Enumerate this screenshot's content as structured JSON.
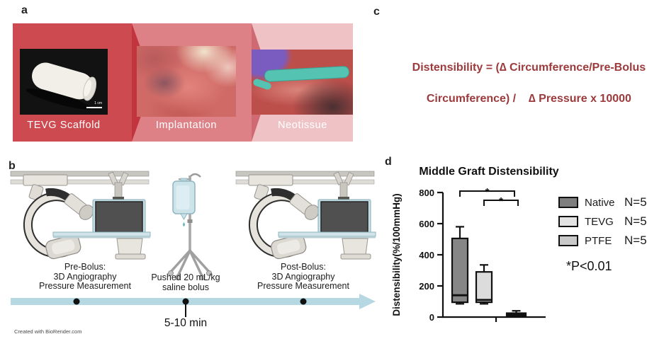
{
  "panels": {
    "a": {
      "label": "a",
      "steps": [
        {
          "title": "TEVG Scaffold"
        },
        {
          "title": "Implantation"
        },
        {
          "title": "Neotissue"
        }
      ],
      "scale_bar": "1 cm",
      "colors": {
        "step1": "#ce4a51",
        "step1_tip": "#c2353e",
        "step2": "#dd8187",
        "step2_tip": "#d06a72",
        "step3": "#efc3c6"
      }
    },
    "b": {
      "label": "b",
      "pre_bolus_lines": [
        "Pre-Bolus:",
        "3D Angiography",
        "Pressure Measurement"
      ],
      "bolus_lines": [
        "Pushed 20 mL/kg",
        "saline bolus"
      ],
      "post_bolus_lines": [
        "Post-Bolus:",
        "3D Angiography",
        "Pressure Measurement"
      ],
      "duration": "5-10 min",
      "credit": "Created with BioRender.com"
    },
    "c": {
      "label": "c",
      "formula_line1": "Distensibility = (∆ Circumference/Pre-Bolus",
      "formula_line2": "Circumference) /    ∆ Pressure x 10000",
      "color": "#9c3a3c"
    },
    "d": {
      "label": "d",
      "note": "*P<0.01"
    }
  },
  "chart_data": {
    "type": "box",
    "title": "Middle Graft Distensibility",
    "ylabel": "Distensibility(%/100mmHg)",
    "ylim": [
      0,
      800
    ],
    "yticks": [
      0,
      200,
      400,
      600,
      800
    ],
    "grid": false,
    "legend_position": "right",
    "groups": [
      {
        "name": "Native",
        "n": "N=5",
        "min": 85,
        "q1": 95,
        "median": 140,
        "q3": 505,
        "max": 580,
        "fill": "#868686",
        "legend_fill": "#7f7f7f"
      },
      {
        "name": "TEVG",
        "n": "N=5",
        "min": 85,
        "q1": 95,
        "median": 110,
        "q3": 290,
        "max": 335,
        "fill": "#dcdcdc",
        "legend_fill": "#e3e3e3"
      },
      {
        "name": "PTFE",
        "n": "N=5",
        "min": 5,
        "q1": 8,
        "median": 15,
        "q3": 25,
        "max": 40,
        "fill": "#141414",
        "legend_fill": "#c9c9c9"
      }
    ],
    "significance": [
      {
        "from": 0,
        "to": 2,
        "label": "*"
      },
      {
        "from": 1,
        "to": 2,
        "label": "*"
      }
    ],
    "note": "*P<0.01"
  }
}
